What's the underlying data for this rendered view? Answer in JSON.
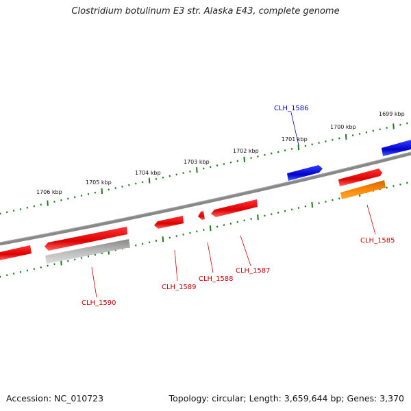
{
  "title": "Clostridium botulinum E3 str. Alaska E43, complete genome",
  "footer": {
    "accession": "Accession: NC_010723",
    "summary": "Topology: circular; Length: 3,659,644 bp; Genes: 3,370"
  },
  "scale_labels": [
    "1699 kbp",
    "1700 kbp",
    "1701 kbp",
    "1702 kbp",
    "1703 kbp",
    "1704 kbp",
    "1705 kbp",
    "1706 kbp"
  ],
  "genes": [
    {
      "locus": "CLH_1585",
      "color": "#cc0000",
      "strand": "forward"
    },
    {
      "locus": "CLH_1586",
      "color": "#0000cc",
      "strand": "forward"
    },
    {
      "locus": "CLH_1587",
      "color": "#cc0000",
      "strand": "reverse"
    },
    {
      "locus": "CLH_1588",
      "color": "#cc0000",
      "strand": "reverse"
    },
    {
      "locus": "CLH_1589",
      "color": "#cc0000",
      "strand": "reverse"
    },
    {
      "locus": "CLH_1590",
      "color": "#cc0000",
      "strand": "reverse"
    }
  ],
  "colors": {
    "cds_red": "#ee0000",
    "cds_blue": "#0000dd",
    "cds_orange": "#ff8800",
    "pseudo_gray": "#bbbbbb",
    "backbone": "#888888",
    "ticks": "#1a7a1a"
  }
}
